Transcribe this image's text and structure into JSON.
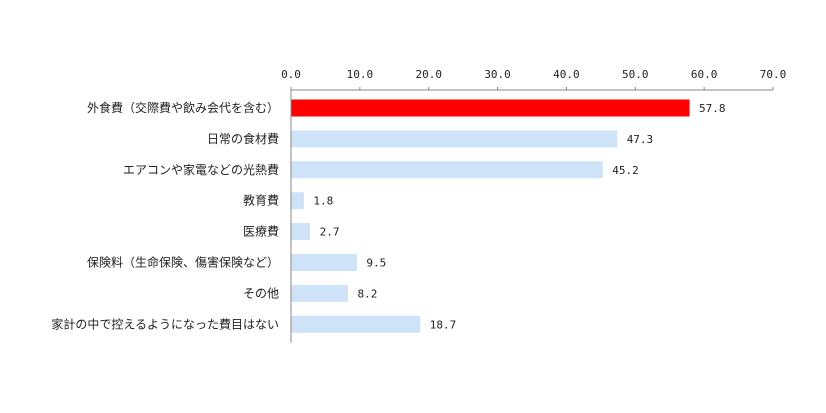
{
  "chart_data": {
    "type": "bar",
    "orientation": "horizontal",
    "categories": [
      "外食費（交際費や飲み会代を含む）",
      "日常の食材費",
      "エアコンや家電などの光熱費",
      "教育費",
      "医療費",
      "保険料（生命保険、傷害保険など）",
      "その他",
      "家計の中で控えるようになった費目はない"
    ],
    "values": [
      57.8,
      47.3,
      45.2,
      1.8,
      2.7,
      9.5,
      8.2,
      18.7
    ],
    "value_labels": [
      "57.8",
      "47.3",
      "45.2",
      "1.8",
      "2.7",
      "9.5",
      "8.2",
      "18.7"
    ],
    "x_ticks": [
      "0.0",
      "10.0",
      "20.0",
      "30.0",
      "40.0",
      "50.0",
      "60.0",
      "70.0"
    ],
    "xlim": [
      0,
      70
    ],
    "x_axis_position": "top",
    "grid": false,
    "highlight_index": 0,
    "colors": {
      "highlight": "#ff0000",
      "bar": "#cfe3f8",
      "axis": "#888888"
    }
  }
}
